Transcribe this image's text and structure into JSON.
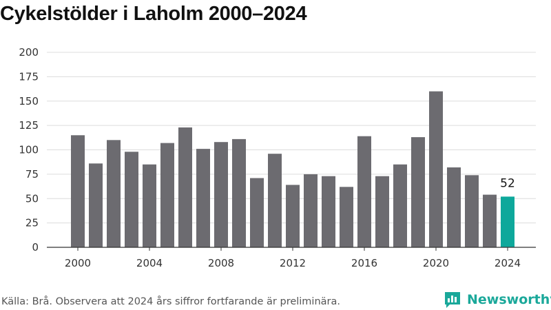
{
  "chart_data": {
    "type": "bar",
    "title": "Cykelstölder i Laholm 2000–2024",
    "xlabel": "",
    "ylabel": "",
    "ylim": [
      0,
      200
    ],
    "yticks": [
      "0",
      "25",
      "50",
      "75",
      "100",
      "125",
      "150",
      "175",
      "200"
    ],
    "xticks": [
      "2000",
      "2004",
      "2008",
      "2012",
      "2016",
      "2020",
      "2024"
    ],
    "categories": [
      "2000",
      "2001",
      "2002",
      "2003",
      "2004",
      "2005",
      "2006",
      "2007",
      "2008",
      "2009",
      "2010",
      "2011",
      "2012",
      "2013",
      "2014",
      "2015",
      "2016",
      "2017",
      "2018",
      "2019",
      "2020",
      "2021",
      "2022",
      "2023",
      "2024"
    ],
    "values": [
      115,
      86,
      110,
      98,
      85,
      107,
      123,
      101,
      108,
      111,
      71,
      96,
      64,
      75,
      73,
      62,
      114,
      73,
      85,
      113,
      160,
      82,
      74,
      54,
      52
    ],
    "annotation": "52",
    "grid": true
  },
  "colors": {
    "bar": "#6c6b70",
    "highlight": "#0ea89b",
    "grid": "#dcdcdc",
    "axis": "#333333",
    "brand": "#1aa89a"
  },
  "footer": {
    "source": "Källa: Brå. Observera att 2024 års siffror fortfarande är preliminära.",
    "brand_name": "Newsworthy",
    "brand_icon": "newsworthy-logo-icon"
  }
}
